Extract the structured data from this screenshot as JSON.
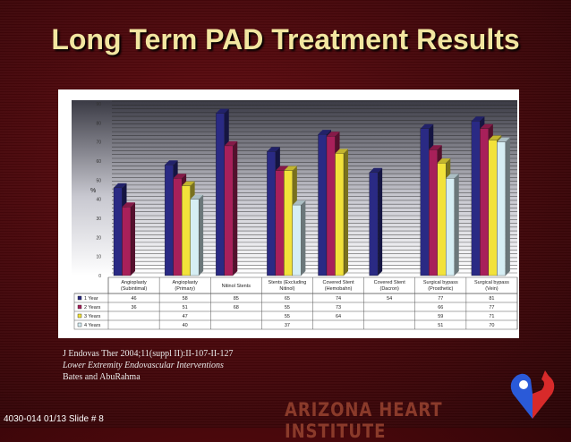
{
  "slide": {
    "title": "Long Term PAD Treatment Results",
    "references": [
      "J Endovas Ther 2004;11(suppl II):II-107-II-127",
      "Lower Extremity Endovascular Interventions",
      "Bates and AbuRahma"
    ],
    "footer": "4030-014  01/13 Slide # 8",
    "brand": "ARIZONA HEART INSTITUTE"
  },
  "chart_data": {
    "type": "bar",
    "title": "",
    "ylabel": "%",
    "xlabel": "",
    "ylim": [
      0,
      90
    ],
    "yticks": [
      0,
      10,
      20,
      30,
      40,
      50,
      60,
      70,
      80,
      90
    ],
    "grid": true,
    "legend": "table-left",
    "categories": [
      [
        "Angioplasty",
        "(Subintimal)"
      ],
      [
        "Angioplasty",
        "(Primary)"
      ],
      [
        "Nitinol Stents",
        ""
      ],
      [
        "Stents (Excluding",
        "Nitinol)"
      ],
      [
        "Covered Stent",
        "(Hemobahn)"
      ],
      [
        "Covered Stent",
        "(Dacron)"
      ],
      [
        "Surgical bypass",
        "(Prosthetic)"
      ],
      [
        "Surgical bypass",
        "(Vein)"
      ]
    ],
    "series": [
      {
        "name": "1 Year",
        "color": "#2a2a84",
        "values": [
          46,
          58,
          85,
          65,
          74,
          54,
          77,
          81
        ]
      },
      {
        "name": "2 Years",
        "color": "#a8205a",
        "values": [
          36,
          51,
          68,
          55,
          73,
          null,
          66,
          77
        ]
      },
      {
        "name": "3 Years",
        "color": "#f2e23a",
        "values": [
          null,
          47,
          null,
          55,
          64,
          null,
          59,
          71
        ]
      },
      {
        "name": "4 Years",
        "color": "#d6eef4",
        "values": [
          null,
          40,
          null,
          37,
          null,
          null,
          51,
          70
        ]
      }
    ]
  }
}
